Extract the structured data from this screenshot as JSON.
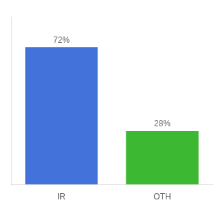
{
  "chart_data": {
    "type": "bar",
    "categories": [
      "IR",
      "OTH"
    ],
    "values": [
      72,
      28
    ],
    "value_labels": [
      "72%",
      "28%"
    ],
    "data_labels": true,
    "colors": [
      "#4472db",
      "#3cb832"
    ],
    "ylim": [
      0,
      88
    ],
    "yticks": [],
    "tick_labels": "x",
    "grid": false
  }
}
